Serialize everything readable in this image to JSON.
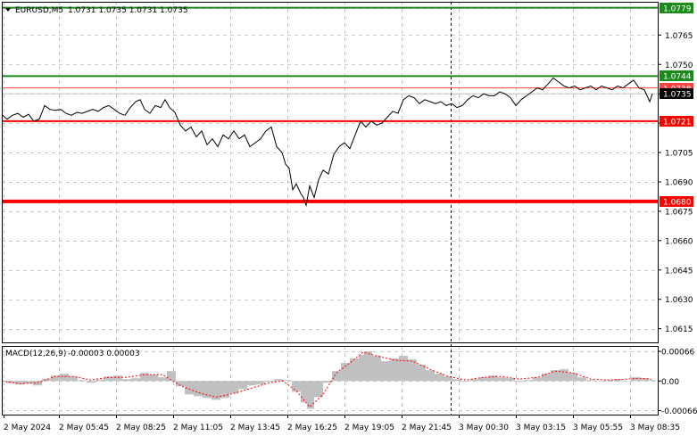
{
  "header": {
    "symbol": "EURUSD,M5",
    "ohlc": "1.0731 1.0735 1.0731 1.0735"
  },
  "macd_panel": {
    "label": "MACD(12,26,9)",
    "values": "-0.00003 0.00003"
  },
  "chart_data": [
    {
      "type": "line",
      "instrument": "EURUSD",
      "timeframe": "M5",
      "ylim": [
        1.0608,
        1.0782
      ],
      "y_ticks": [
        "1.0779",
        "1.0765",
        "1.0750",
        "1.0735",
        "1.0720",
        "1.0705",
        "1.0690",
        "1.0675",
        "1.0660",
        "1.0645",
        "1.0630",
        "1.0615"
      ],
      "x_ticks": [
        "2 May 2024",
        "2 May 05:45",
        "2 May 08:25",
        "2 May 11:05",
        "2 May 13:45",
        "2 May 16:25",
        "2 May 19:05",
        "2 May 21:45",
        "3 May 00:30",
        "3 May 03:15",
        "3 May 05:55",
        "3 May 08:35"
      ],
      "price_path": [
        [
          0,
          1.07245
        ],
        [
          6,
          1.0722
        ],
        [
          12,
          1.0724
        ],
        [
          18,
          1.0725
        ],
        [
          24,
          1.0723
        ],
        [
          30,
          1.07245
        ],
        [
          36,
          1.0721
        ],
        [
          42,
          1.0722
        ],
        [
          48,
          1.0729
        ],
        [
          54,
          1.0727
        ],
        [
          60,
          1.07265
        ],
        [
          66,
          1.0727
        ],
        [
          72,
          1.0725
        ],
        [
          78,
          1.0724
        ],
        [
          84,
          1.07255
        ],
        [
          90,
          1.0725
        ],
        [
          96,
          1.0726
        ],
        [
          102,
          1.0727
        ],
        [
          108,
          1.0726
        ],
        [
          114,
          1.0728
        ],
        [
          120,
          1.0729
        ],
        [
          126,
          1.0727
        ],
        [
          132,
          1.0725
        ],
        [
          138,
          1.0724
        ],
        [
          144,
          1.0728
        ],
        [
          150,
          1.0731
        ],
        [
          155,
          1.0732
        ],
        [
          160,
          1.0727
        ],
        [
          166,
          1.0725
        ],
        [
          172,
          1.0729
        ],
        [
          178,
          1.0728
        ],
        [
          183,
          1.0732
        ],
        [
          188,
          1.0728
        ],
        [
          194,
          1.07255
        ],
        [
          200,
          1.0719
        ],
        [
          206,
          1.0716
        ],
        [
          212,
          1.0718
        ],
        [
          218,
          1.0713
        ],
        [
          224,
          1.0716
        ],
        [
          230,
          1.0709
        ],
        [
          236,
          1.0712
        ],
        [
          242,
          1.0708
        ],
        [
          248,
          1.0714
        ],
        [
          254,
          1.0712
        ],
        [
          260,
          1.0716
        ],
        [
          266,
          1.0712
        ],
        [
          272,
          1.0714
        ],
        [
          278,
          1.0708
        ],
        [
          284,
          1.071
        ],
        [
          290,
          1.0712
        ],
        [
          296,
          1.0716
        ],
        [
          302,
          1.0718
        ],
        [
          308,
          1.0708
        ],
        [
          314,
          1.0705
        ],
        [
          318,
          1.0699
        ],
        [
          322,
          1.0697
        ],
        [
          326,
          1.0686
        ],
        [
          330,
          1.0689
        ],
        [
          335,
          1.0684
        ],
        [
          338,
          1.0682
        ],
        [
          341,
          1.0678
        ],
        [
          345,
          1.0688
        ],
        [
          350,
          1.0682
        ],
        [
          355,
          1.0691
        ],
        [
          360,
          1.0696
        ],
        [
          366,
          1.0694
        ],
        [
          372,
          1.0704
        ],
        [
          378,
          1.0708
        ],
        [
          384,
          1.071
        ],
        [
          390,
          1.0707
        ],
        [
          396,
          1.0714
        ],
        [
          402,
          1.0721
        ],
        [
          408,
          1.0718
        ],
        [
          414,
          1.0721
        ],
        [
          420,
          1.0719
        ],
        [
          426,
          1.072
        ],
        [
          432,
          1.0723
        ],
        [
          438,
          1.0726
        ],
        [
          444,
          1.0725
        ],
        [
          450,
          1.0732
        ],
        [
          456,
          1.0734
        ],
        [
          462,
          1.0733
        ],
        [
          468,
          1.073
        ],
        [
          474,
          1.0732
        ],
        [
          480,
          1.0731
        ],
        [
          486,
          1.073
        ],
        [
          492,
          1.0731
        ],
        [
          498,
          1.0729
        ],
        [
          504,
          1.073
        ],
        [
          510,
          1.0728
        ],
        [
          516,
          1.0729
        ],
        [
          522,
          1.0732
        ],
        [
          528,
          1.0734
        ],
        [
          534,
          1.0733
        ],
        [
          540,
          1.0735
        ],
        [
          546,
          1.0734
        ],
        [
          552,
          1.0734
        ],
        [
          558,
          1.0736
        ],
        [
          564,
          1.0735
        ],
        [
          570,
          1.0733
        ],
        [
          576,
          1.0729
        ],
        [
          582,
          1.0732
        ],
        [
          588,
          1.0734
        ],
        [
          594,
          1.0736
        ],
        [
          600,
          1.0738
        ],
        [
          606,
          1.0737
        ],
        [
          612,
          1.074
        ],
        [
          618,
          1.0743
        ],
        [
          624,
          1.0741
        ],
        [
          630,
          1.0739
        ],
        [
          636,
          1.0738
        ],
        [
          642,
          1.0739
        ],
        [
          648,
          1.0737
        ],
        [
          654,
          1.0738
        ],
        [
          660,
          1.0739
        ],
        [
          666,
          1.0737
        ],
        [
          672,
          1.0739
        ],
        [
          678,
          1.0738
        ],
        [
          684,
          1.0737
        ],
        [
          690,
          1.0739
        ],
        [
          696,
          1.0738
        ],
        [
          702,
          1.074
        ],
        [
          708,
          1.0742
        ],
        [
          714,
          1.0738
        ],
        [
          720,
          1.0737
        ],
        [
          726,
          1.0731
        ],
        [
          729,
          1.0735
        ]
      ],
      "levels": [
        {
          "label": "1.0779",
          "value": 1.0779,
          "color": "#1a8a1a",
          "style": "solid"
        },
        {
          "label": "1.0744",
          "value": 1.0744,
          "color": "#1a8a1a",
          "style": "solid"
        },
        {
          "label": "1.0738",
          "value": 1.0738,
          "color": "#ff4040",
          "style": "thin"
        },
        {
          "label": "1.0735",
          "value": 1.0735,
          "color": "#000000",
          "style": "current"
        },
        {
          "label": "1.0721",
          "value": 1.0721,
          "color": "#ff0000",
          "style": "solid"
        },
        {
          "label": "1.0680",
          "value": 1.068,
          "color": "#ff0000",
          "style": "thick"
        }
      ]
    },
    {
      "type": "bar",
      "indicator": "MACD(12,26,9)",
      "ylim": [
        -0.00075,
        0.00078
      ],
      "y_ticks": [
        "0.00066",
        "0.00",
        "-0.00066"
      ],
      "histogram": [
        [
          5,
          -5e-05
        ],
        [
          15,
          -8e-05
        ],
        [
          25,
          -6e-05
        ],
        [
          35,
          -0.0001
        ],
        [
          45,
          5e-05
        ],
        [
          55,
          0.00012
        ],
        [
          65,
          0.00016
        ],
        [
          75,
          0.0001
        ],
        [
          85,
          2e-05
        ],
        [
          95,
          -4e-05
        ],
        [
          105,
          3e-05
        ],
        [
          115,
          0.0001
        ],
        [
          125,
          0.00012
        ],
        [
          135,
          4e-05
        ],
        [
          145,
          6e-05
        ],
        [
          155,
          0.00018
        ],
        [
          165,
          0.00014
        ],
        [
          175,
          8e-05
        ],
        [
          185,
          0.00022
        ],
        [
          195,
          -0.00012
        ],
        [
          205,
          -0.0003
        ],
        [
          215,
          -0.00034
        ],
        [
          225,
          -0.00038
        ],
        [
          235,
          -0.00042
        ],
        [
          245,
          -0.00038
        ],
        [
          255,
          -0.00028
        ],
        [
          265,
          -0.00018
        ],
        [
          275,
          -0.0001
        ],
        [
          285,
          -8e-05
        ],
        [
          295,
          -2e-05
        ],
        [
          305,
          4e-05
        ],
        [
          315,
          2e-05
        ],
        [
          325,
          -0.00024
        ],
        [
          335,
          -0.00048
        ],
        [
          342,
          -0.00062
        ],
        [
          350,
          -0.00036
        ],
        [
          360,
          -4e-05
        ],
        [
          370,
          0.00022
        ],
        [
          380,
          0.0004
        ],
        [
          390,
          0.0005
        ],
        [
          400,
          0.00058
        ],
        [
          406,
          0.00066
        ],
        [
          415,
          0.00056
        ],
        [
          425,
          0.00044
        ],
        [
          435,
          0.0005
        ],
        [
          445,
          0.00056
        ],
        [
          455,
          0.00048
        ],
        [
          465,
          0.00036
        ],
        [
          475,
          0.00024
        ],
        [
          485,
          0.00016
        ],
        [
          495,
          0.0001
        ],
        [
          505,
          4e-05
        ],
        [
          515,
          0.0
        ],
        [
          525,
          4e-05
        ],
        [
          535,
          8e-05
        ],
        [
          545,
          0.00012
        ],
        [
          555,
          8e-05
        ],
        [
          565,
          6e-05
        ],
        [
          575,
          -2e-05
        ],
        [
          585,
          2e-05
        ],
        [
          595,
          8e-05
        ],
        [
          605,
          0.00016
        ],
        [
          615,
          0.00024
        ],
        [
          625,
          0.00026
        ],
        [
          635,
          0.00018
        ],
        [
          645,
          8e-05
        ],
        [
          655,
          2e-05
        ],
        [
          665,
          0.0
        ],
        [
          675,
          2e-05
        ],
        [
          685,
          4e-05
        ],
        [
          695,
          0.0
        ],
        [
          705,
          8e-05
        ],
        [
          715,
          6e-05
        ],
        [
          725,
          2e-05
        ]
      ],
      "signal": [
        [
          0,
          0.0
        ],
        [
          20,
          -6e-05
        ],
        [
          40,
          -4e-05
        ],
        [
          60,
          0.0001
        ],
        [
          80,
          0.0001
        ],
        [
          100,
          2e-05
        ],
        [
          120,
          8e-05
        ],
        [
          140,
          8e-05
        ],
        [
          160,
          0.00014
        ],
        [
          180,
          0.00014
        ],
        [
          200,
          -0.0001
        ],
        [
          220,
          -0.00026
        ],
        [
          240,
          -0.00036
        ],
        [
          260,
          -0.00028
        ],
        [
          280,
          -0.00016
        ],
        [
          300,
          -4e-05
        ],
        [
          315,
          0.0
        ],
        [
          330,
          -0.00022
        ],
        [
          345,
          -0.00058
        ],
        [
          360,
          -0.0003
        ],
        [
          375,
          0.00018
        ],
        [
          390,
          0.0004
        ],
        [
          405,
          0.00064
        ],
        [
          420,
          0.00056
        ],
        [
          440,
          0.00046
        ],
        [
          460,
          0.00044
        ],
        [
          480,
          0.00026
        ],
        [
          500,
          0.0001
        ],
        [
          520,
          2e-05
        ],
        [
          540,
          8e-05
        ],
        [
          560,
          0.0001
        ],
        [
          580,
          4e-05
        ],
        [
          600,
          8e-05
        ],
        [
          620,
          0.00022
        ],
        [
          640,
          0.00018
        ],
        [
          660,
          4e-05
        ],
        [
          680,
          2e-05
        ],
        [
          700,
          4e-05
        ],
        [
          715,
          6e-05
        ],
        [
          728,
          4e-05
        ]
      ]
    }
  ],
  "colors": {
    "price_line": "#000000",
    "grid": "#c8c8c8",
    "macd_histogram": "#c0c0c0",
    "macd_signal": "#ff0000",
    "vertical_marker": "#000000"
  }
}
